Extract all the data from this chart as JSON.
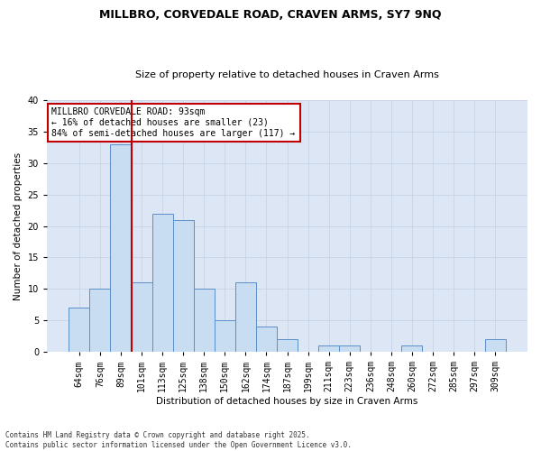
{
  "title1": "MILLBRO, CORVEDALE ROAD, CRAVEN ARMS, SY7 9NQ",
  "title2": "Size of property relative to detached houses in Craven Arms",
  "xlabel": "Distribution of detached houses by size in Craven Arms",
  "ylabel": "Number of detached properties",
  "categories": [
    "64sqm",
    "76sqm",
    "89sqm",
    "101sqm",
    "113sqm",
    "125sqm",
    "138sqm",
    "150sqm",
    "162sqm",
    "174sqm",
    "187sqm",
    "199sqm",
    "211sqm",
    "223sqm",
    "236sqm",
    "248sqm",
    "260sqm",
    "272sqm",
    "285sqm",
    "297sqm",
    "309sqm"
  ],
  "values": [
    7,
    10,
    33,
    11,
    22,
    21,
    10,
    5,
    11,
    4,
    2,
    0,
    1,
    1,
    0,
    0,
    1,
    0,
    0,
    0,
    2
  ],
  "bar_color": "#c9ddf2",
  "bar_edge_color": "#5b8fc9",
  "vline_x_index": 2,
  "vline_color": "#c00000",
  "annotation_text": "MILLBRO CORVEDALE ROAD: 93sqm\n← 16% of detached houses are smaller (23)\n84% of semi-detached houses are larger (117) →",
  "annotation_box_color": "#ffffff",
  "annotation_box_edge_color": "#c00000",
  "grid_color": "#c8d4e8",
  "plot_bg_color": "#dce6f5",
  "fig_bg_color": "#ffffff",
  "footer": "Contains HM Land Registry data © Crown copyright and database right 2025.\nContains public sector information licensed under the Open Government Licence v3.0.",
  "ylim": [
    0,
    40
  ],
  "yticks": [
    0,
    5,
    10,
    15,
    20,
    25,
    30,
    35,
    40
  ],
  "title1_fontsize": 9,
  "title2_fontsize": 8,
  "axis_label_fontsize": 7.5,
  "tick_fontsize": 7
}
